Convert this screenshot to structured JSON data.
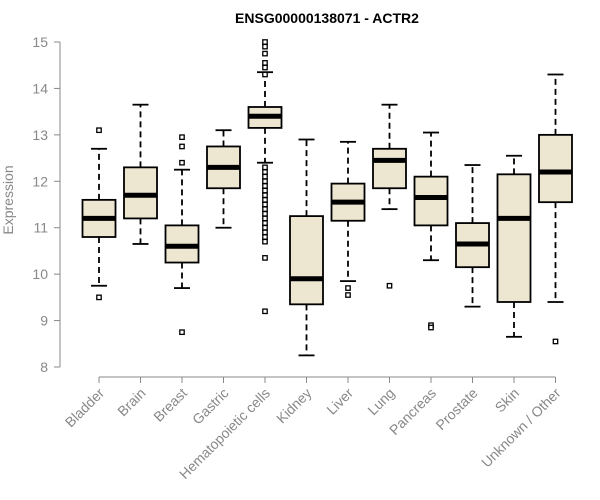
{
  "chart_data": {
    "type": "box",
    "title": "ENSG00000138071 - ACTR2",
    "ylabel": "Expression",
    "xlabel": "",
    "ylim": [
      8,
      15
    ],
    "yticks": [
      8,
      9,
      10,
      11,
      12,
      13,
      14,
      15
    ],
    "box_fill": "#ede6d0",
    "box_stroke": "#000000",
    "axis_color": "#888888",
    "categories": [
      "Bladder",
      "Brain",
      "Breast",
      "Gastric",
      "Hematopoietic cells",
      "Kidney",
      "Liver",
      "Lung",
      "Pancreas",
      "Prostate",
      "Skin",
      "Unknown / Other"
    ],
    "series": [
      {
        "name": "Bladder",
        "whisker_low": 9.75,
        "q1": 10.8,
        "median": 11.2,
        "q3": 11.6,
        "whisker_high": 12.7,
        "outliers": [
          13.1,
          9.5
        ]
      },
      {
        "name": "Brain",
        "whisker_low": 10.65,
        "q1": 11.2,
        "median": 11.7,
        "q3": 12.3,
        "whisker_high": 13.65,
        "outliers": []
      },
      {
        "name": "Breast",
        "whisker_low": 9.7,
        "q1": 10.25,
        "median": 10.6,
        "q3": 11.05,
        "whisker_high": 12.25,
        "outliers": [
          12.95,
          12.75,
          12.4,
          8.75
        ]
      },
      {
        "name": "Gastric",
        "whisker_low": 11.0,
        "q1": 11.85,
        "median": 12.3,
        "q3": 12.75,
        "whisker_high": 13.1,
        "outliers": []
      },
      {
        "name": "Hematopoietic cells",
        "whisker_low": 12.4,
        "q1": 13.15,
        "median": 13.4,
        "q3": 13.6,
        "whisker_high": 14.35,
        "outliers": [
          15.0,
          14.9,
          14.75,
          14.55,
          14.45,
          14.3,
          12.3,
          12.2,
          12.1,
          12.0,
          11.9,
          11.8,
          11.7,
          11.6,
          11.5,
          11.4,
          11.3,
          11.2,
          11.1,
          11.0,
          10.9,
          10.8,
          10.7,
          10.35,
          9.2
        ]
      },
      {
        "name": "Kidney",
        "whisker_low": 8.25,
        "q1": 9.35,
        "median": 9.9,
        "q3": 11.25,
        "whisker_high": 12.9,
        "outliers": []
      },
      {
        "name": "Liver",
        "whisker_low": 9.85,
        "q1": 11.15,
        "median": 11.55,
        "q3": 11.95,
        "whisker_high": 12.85,
        "outliers": [
          9.7,
          9.55
        ]
      },
      {
        "name": "Lung",
        "whisker_low": 11.4,
        "q1": 11.85,
        "median": 12.45,
        "q3": 12.7,
        "whisker_high": 13.65,
        "outliers": [
          9.75
        ]
      },
      {
        "name": "Pancreas",
        "whisker_low": 10.3,
        "q1": 11.05,
        "median": 11.65,
        "q3": 12.1,
        "whisker_high": 13.05,
        "outliers": [
          8.9,
          8.85
        ]
      },
      {
        "name": "Prostate",
        "whisker_low": 9.3,
        "q1": 10.15,
        "median": 10.65,
        "q3": 11.1,
        "whisker_high": 12.35,
        "outliers": []
      },
      {
        "name": "Skin",
        "whisker_low": 8.65,
        "q1": 9.4,
        "median": 11.2,
        "q3": 12.15,
        "whisker_high": 12.55,
        "outliers": []
      },
      {
        "name": "Unknown / Other",
        "whisker_low": 9.4,
        "q1": 11.55,
        "median": 12.2,
        "q3": 13.0,
        "whisker_high": 14.3,
        "outliers": [
          8.55
        ]
      }
    ]
  }
}
